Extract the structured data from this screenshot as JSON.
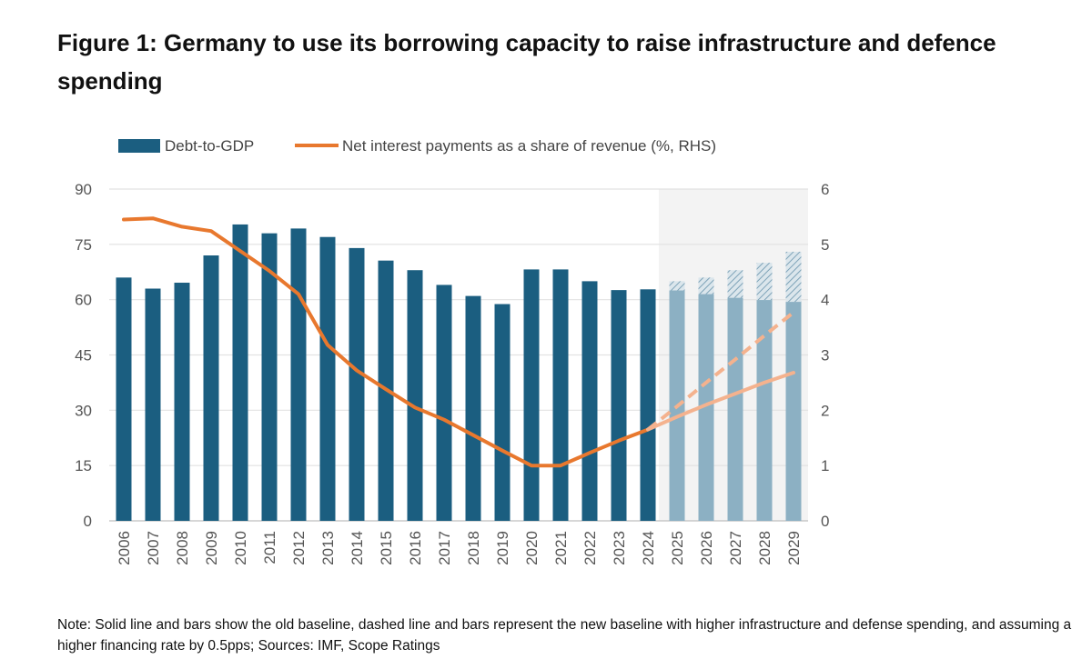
{
  "title": "Figure 1: Germany to use its borrowing capacity to raise infrastructure and defence spending",
  "note": "Note: Solid line and bars show the old baseline, dashed line and bars represent the new baseline with higher infrastructure and defense spending, and assuming a higher financing rate by 0.5pps; Sources: IMF, Scope Ratings",
  "chart_data": {
    "type": "bar",
    "categories": [
      "2006",
      "2007",
      "2008",
      "2009",
      "2010",
      "2011",
      "2012",
      "2013",
      "2014",
      "2015",
      "2016",
      "2017",
      "2018",
      "2019",
      "2020",
      "2021",
      "2022",
      "2023",
      "2024",
      "2025",
      "2026",
      "2027",
      "2028",
      "2029"
    ],
    "forecast_start": "2025",
    "legend_position": "top",
    "grid": true,
    "y_left": {
      "range": [
        0,
        90
      ],
      "ticks": [
        "0",
        "15",
        "30",
        "45",
        "60",
        "75",
        "90"
      ]
    },
    "y_right": {
      "range": [
        0,
        6
      ],
      "ticks": [
        "0",
        "1",
        "2",
        "3",
        "4",
        "5",
        "6"
      ]
    },
    "series": [
      {
        "name": "Debt-to-GDP",
        "type": "bar",
        "axis": "left",
        "color": "#1b5e80",
        "forecast_color": "#8cb0c3",
        "values": [
          66,
          63,
          64.6,
          72,
          80.4,
          78,
          79.3,
          77,
          74,
          70.6,
          68,
          64,
          61,
          58.8,
          68.2,
          68.2,
          65,
          62.6,
          62.8,
          62.5,
          61.5,
          60.5,
          59.9,
          59.4
        ]
      },
      {
        "name": "Debt-to-GDP (new baseline)",
        "type": "bar-hatched",
        "axis": "left",
        "color": "#8cb0c3",
        "x": [
          "2025",
          "2026",
          "2027",
          "2028",
          "2029"
        ],
        "values": [
          65,
          66,
          68,
          70,
          73
        ]
      },
      {
        "name": "Net interest payments as a share of revenue (%, RHS)",
        "type": "line",
        "axis": "right",
        "color": "#e8782e",
        "forecast_color": "#f4b28e",
        "values": [
          5.45,
          5.47,
          5.32,
          5.24,
          4.88,
          4.52,
          4.1,
          3.18,
          2.72,
          2.38,
          2.05,
          1.83,
          1.55,
          1.27,
          1.0,
          1.0,
          1.23,
          1.45,
          1.65,
          1.88,
          2.1,
          2.3,
          2.5,
          2.68
        ]
      },
      {
        "name": "Net interest payments (new baseline)",
        "type": "line-dashed",
        "axis": "right",
        "color": "#f4b28e",
        "x": [
          "2024",
          "2025",
          "2026",
          "2027",
          "2028",
          "2029"
        ],
        "values": [
          1.65,
          2.07,
          2.5,
          2.92,
          3.35,
          3.77
        ]
      }
    ]
  }
}
